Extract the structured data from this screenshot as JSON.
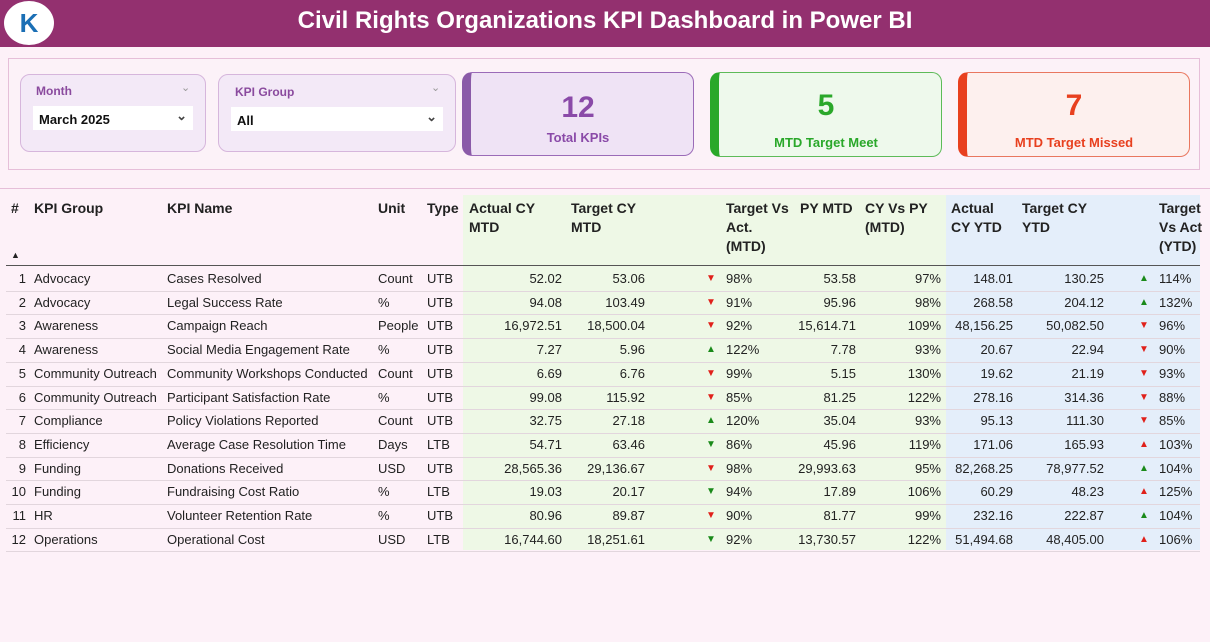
{
  "header": {
    "title": "Civil Rights Organizations KPI Dashboard in Power BI"
  },
  "filters": [
    {
      "label": "Month",
      "value": "March 2025"
    },
    {
      "label": "KPI Group",
      "value": "All"
    }
  ],
  "cards": [
    {
      "value": 12,
      "label": "Total KPIs"
    },
    {
      "value": 5,
      "label": "MTD Target Meet"
    },
    {
      "value": 7,
      "label": "MTD Target Missed"
    }
  ],
  "table": {
    "columns": [
      "#",
      "KPI Group",
      "KPI Name",
      "Unit",
      "Type",
      "Actual CY MTD",
      "Target CY MTD",
      "Target Vs Act. (MTD)",
      "PY MTD",
      "CY Vs PY (MTD)",
      "Actual CY YTD",
      "Target CY YTD",
      "Target Vs Act (YTD)"
    ],
    "rows": [
      [
        1,
        "Advocacy",
        "Cases Resolved",
        "Count",
        "UTB",
        "52.02",
        "53.06",
        "98%",
        "53.58",
        "97%",
        "148.01",
        "130.25",
        "114%"
      ],
      [
        2,
        "Advocacy",
        "Legal Success Rate",
        "%",
        "UTB",
        "94.08",
        "103.49",
        "91%",
        "95.96",
        "98%",
        "268.58",
        "204.12",
        "132%"
      ],
      [
        3,
        "Awareness",
        "Campaign Reach",
        "People",
        "UTB",
        "16,972.51",
        "18,500.04",
        "92%",
        "15,614.71",
        "109%",
        "48,156.25",
        "50,082.50",
        "96%"
      ],
      [
        4,
        "Awareness",
        "Social Media Engagement Rate",
        "%",
        "UTB",
        "7.27",
        "5.96",
        "122%",
        "7.78",
        "93%",
        "20.67",
        "22.94",
        "90%"
      ],
      [
        5,
        "Community Outreach",
        "Community Workshops Conducted",
        "Count",
        "UTB",
        "6.69",
        "6.76",
        "99%",
        "5.15",
        "130%",
        "19.62",
        "21.19",
        "93%"
      ],
      [
        6,
        "Community Outreach",
        "Participant Satisfaction Rate",
        "%",
        "UTB",
        "99.08",
        "115.92",
        "85%",
        "81.25",
        "122%",
        "278.16",
        "314.36",
        "88%"
      ],
      [
        7,
        "Compliance",
        "Policy Violations Reported",
        "Count",
        "UTB",
        "32.75",
        "27.18",
        "120%",
        "35.04",
        "93%",
        "95.13",
        "111.30",
        "85%"
      ],
      [
        8,
        "Efficiency",
        "Average Case Resolution Time",
        "Days",
        "LTB",
        "54.71",
        "63.46",
        "86%",
        "45.96",
        "119%",
        "171.06",
        "165.93",
        "103%"
      ],
      [
        9,
        "Funding",
        "Donations Received",
        "USD",
        "UTB",
        "28,565.36",
        "29,136.67",
        "98%",
        "29,993.63",
        "95%",
        "82,268.25",
        "78,977.52",
        "104%"
      ],
      [
        10,
        "Funding",
        "Fundraising Cost Ratio",
        "%",
        "LTB",
        "19.03",
        "20.17",
        "94%",
        "17.89",
        "106%",
        "60.29",
        "48.23",
        "125%"
      ],
      [
        11,
        "HR",
        "Volunteer Retention Rate",
        "%",
        "UTB",
        "80.96",
        "89.87",
        "90%",
        "81.77",
        "99%",
        "232.16",
        "222.87",
        "104%"
      ],
      [
        12,
        "Operations",
        "Operational Cost",
        "USD",
        "LTB",
        "16,744.60",
        "18,251.61",
        "92%",
        "13,730.57",
        "122%",
        "51,494.68",
        "48,405.00",
        "106%"
      ]
    ]
  }
}
